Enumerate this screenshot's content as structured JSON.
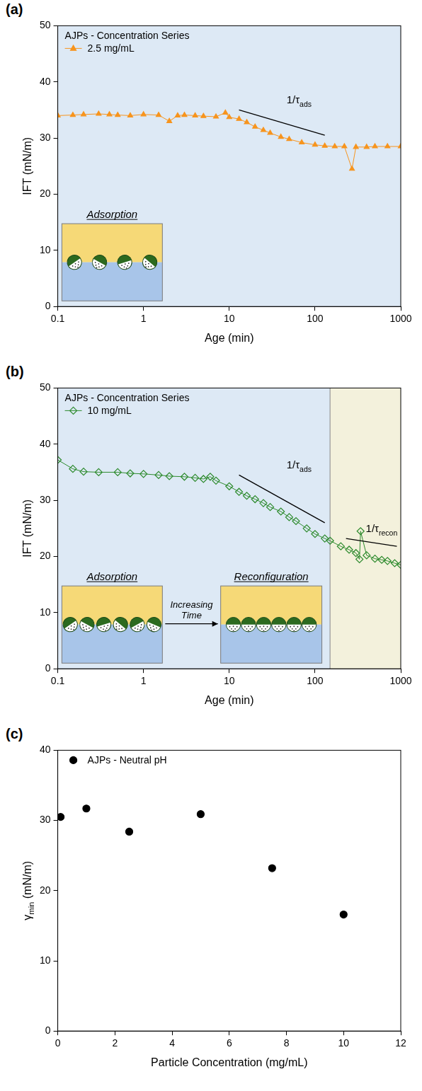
{
  "chart_data": [
    {
      "panel": "(a)",
      "type": "line",
      "legend_title": "AJPs - Concentration Series",
      "x_label": "Age (min)",
      "y_label": "IFT (mN/m)",
      "x": [
        0.1,
        0.15,
        0.2,
        0.3,
        0.4,
        0.5,
        0.7,
        1,
        1.5,
        2,
        2.5,
        3,
        4,
        5,
        7,
        9,
        10,
        13,
        16,
        20,
        25,
        30,
        40,
        50,
        70,
        100,
        130,
        170,
        220,
        270,
        300,
        400,
        500,
        700,
        1000
      ],
      "series": [
        {
          "name": "2.5 mg/mL",
          "color": "#f7941d",
          "marker": "triangle",
          "line_style": "solid",
          "values": [
            34.0,
            34.1,
            34.2,
            34.3,
            34.2,
            34.1,
            34.0,
            34.2,
            34.1,
            33.0,
            34.0,
            34.1,
            34.0,
            33.9,
            33.8,
            34.5,
            33.7,
            33.4,
            32.8,
            32.0,
            31.4,
            30.9,
            30.2,
            29.8,
            29.2,
            28.8,
            28.6,
            28.5,
            28.5,
            24.5,
            28.4,
            28.4,
            28.5,
            28.5,
            28.5
          ]
        }
      ],
      "log": "x",
      "xlim": [
        0.1,
        1000
      ],
      "xticks": [
        0.1,
        1,
        10,
        100,
        1000
      ],
      "ylim": [
        0,
        50
      ],
      "yticks": [
        0,
        10,
        20,
        30,
        40,
        50
      ],
      "grid": false,
      "legend": "upper left",
      "shaded_regions": [
        {
          "from": 0.1,
          "to": 1000,
          "color": "#dde9f5"
        }
      ],
      "annotations": [
        {
          "text": [
            "1/τ",
            "ads"
          ],
          "x": [
            13,
            130
          ],
          "y": [
            35,
            30.5
          ]
        }
      ],
      "insets": [
        "Adsorption"
      ]
    },
    {
      "panel": "(b)",
      "type": "line",
      "legend_title": "AJPs - Concentration Series",
      "x_label": "Age (min)",
      "y_label": "IFT (mN/m)",
      "x": [
        0.1,
        0.15,
        0.2,
        0.3,
        0.5,
        0.7,
        1,
        1.5,
        2,
        3,
        4,
        5,
        6,
        7,
        10,
        13,
        16,
        20,
        25,
        30,
        40,
        50,
        60,
        80,
        100,
        130,
        150,
        200,
        250,
        300,
        330,
        340,
        400,
        500,
        600,
        700,
        850,
        1000
      ],
      "series": [
        {
          "name": "10 mg/mL",
          "color": "#2e8b2e",
          "marker": "open_diamond",
          "line_style": "solid",
          "values": [
            37.2,
            35.6,
            35.1,
            35.0,
            35.0,
            34.8,
            34.7,
            34.5,
            34.3,
            34.2,
            34.0,
            33.8,
            34.2,
            33.5,
            32.5,
            31.5,
            30.8,
            30.2,
            29.5,
            28.8,
            28.0,
            27.0,
            26.3,
            25.0,
            24.0,
            23.2,
            22.8,
            21.8,
            21.2,
            20.6,
            19.5,
            24.5,
            20.2,
            19.6,
            19.4,
            19.2,
            18.8,
            18.5
          ]
        }
      ],
      "log": "x",
      "xlim": [
        0.1,
        1000
      ],
      "xticks": [
        0.1,
        1,
        10,
        100,
        1000
      ],
      "ylim": [
        0,
        50
      ],
      "yticks": [
        0,
        10,
        20,
        30,
        40,
        50
      ],
      "grid": false,
      "legend": "upper left",
      "shaded_regions": [
        {
          "from": 0.1,
          "to": 150,
          "color": "#dde9f5"
        },
        {
          "from": 150,
          "to": 1000,
          "color": "#f3f1dc"
        }
      ],
      "annotations": [
        {
          "text": [
            "1/τ",
            "ads"
          ],
          "x": [
            13,
            130
          ],
          "y": [
            34.5,
            26
          ]
        },
        {
          "text": [
            "1/τ",
            "recon"
          ],
          "x": [
            230,
            900
          ],
          "y": [
            23.2,
            21.8
          ]
        }
      ],
      "insets": [
        "Adsorption",
        "Reconfiguration"
      ],
      "inset_arrow": "Increasing Time"
    },
    {
      "panel": "(c)",
      "type": "scatter",
      "x_label": "Particle Concentration (mg/mL)",
      "y_label": [
        "γ",
        "min",
        " (mN/m)"
      ],
      "x": [
        0.1,
        1,
        2.5,
        5,
        7.5,
        10
      ],
      "series": [
        {
          "name": "AJPs - Neutral pH",
          "color": "#000000",
          "marker": "circle",
          "line_style": "none",
          "values": [
            30.5,
            31.7,
            28.4,
            30.9,
            23.2,
            16.6
          ]
        }
      ],
      "xlim": [
        0,
        12
      ],
      "xticks": [
        0,
        2,
        4,
        6,
        8,
        10,
        12
      ],
      "ylim": [
        0,
        40
      ],
      "yticks": [
        0,
        10,
        20,
        30,
        40
      ],
      "grid": false,
      "legend": "upper left"
    }
  ]
}
